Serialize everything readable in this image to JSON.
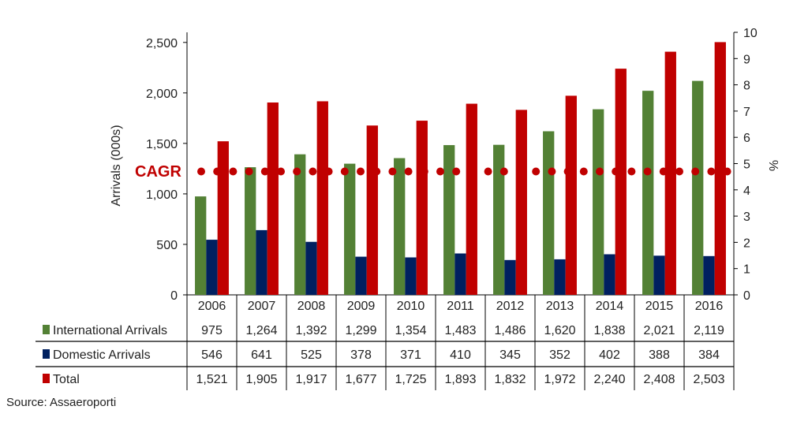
{
  "chart_data": {
    "type": "bar",
    "categories": [
      "2006",
      "2007",
      "2008",
      "2009",
      "2010",
      "2011",
      "2012",
      "2013",
      "2014",
      "2015",
      "2016"
    ],
    "series": [
      {
        "name": "International Arrivals",
        "color": "#538135",
        "values": [
          975,
          1264,
          1392,
          1299,
          1354,
          1483,
          1486,
          1620,
          1838,
          2021,
          2119
        ],
        "labels": [
          "975",
          "1,264",
          "1,392",
          "1,299",
          "1,354",
          "1,483",
          "1,486",
          "1,620",
          "1,838",
          "2,021",
          "2,119"
        ]
      },
      {
        "name": "Domestic Arrivals",
        "color": "#002060",
        "values": [
          546,
          641,
          525,
          378,
          371,
          410,
          345,
          352,
          402,
          388,
          384
        ],
        "labels": [
          "546",
          "641",
          "525",
          "378",
          "371",
          "410",
          "345",
          "352",
          "402",
          "388",
          "384"
        ]
      },
      {
        "name": "Total",
        "color": "#C00000",
        "values": [
          1521,
          1905,
          1917,
          1677,
          1725,
          1893,
          1832,
          1972,
          2240,
          2408,
          2503
        ],
        "labels": [
          "1,521",
          "1,905",
          "1,917",
          "1,677",
          "1,725",
          "1,893",
          "1,832",
          "1,972",
          "2,240",
          "2,408",
          "2,503"
        ]
      }
    ],
    "cagr": {
      "label": "CAGR",
      "value": 4.7,
      "axis": "right",
      "style": "dotted",
      "color": "#C00000"
    },
    "ylabel": "Arrivals (000s)",
    "ylim": [
      0,
      2600
    ],
    "yticks": [
      "0",
      "500",
      "1,000",
      "1,500",
      "2,000",
      "2,500"
    ],
    "y2label": "%",
    "y2lim": [
      0,
      10
    ],
    "y2ticks": [
      "0",
      "1",
      "2",
      "3",
      "4",
      "5",
      "6",
      "7",
      "8",
      "9",
      "10"
    ],
    "grid": false,
    "legend": "data-table-below",
    "source": "Source: Assaeroporti"
  }
}
